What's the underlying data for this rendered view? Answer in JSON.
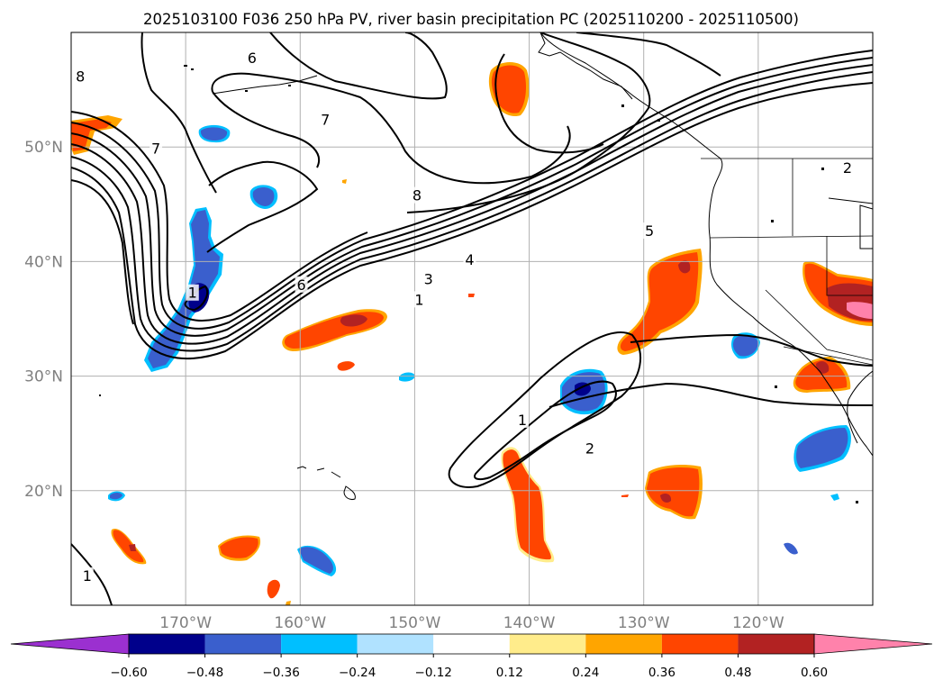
{
  "title": "2025103100 F036 250 hPa PV, river basin precipitation PC (2025110200 - 2025110500)",
  "map": {
    "lon_range": [
      -180,
      -110
    ],
    "lat_range": [
      10,
      60
    ],
    "lon_ticks": [
      {
        "value": -170,
        "label": "170°W"
      },
      {
        "value": -160,
        "label": "160°W"
      },
      {
        "value": -150,
        "label": "150°W"
      },
      {
        "value": -140,
        "label": "140°W"
      },
      {
        "value": -130,
        "label": "130°W"
      },
      {
        "value": -120,
        "label": "120°W"
      }
    ],
    "lat_ticks": [
      {
        "value": 20,
        "label": "20°N"
      },
      {
        "value": 30,
        "label": "30°N"
      },
      {
        "value": 40,
        "label": "40°N"
      },
      {
        "value": 50,
        "label": "50°N"
      }
    ],
    "grid": true,
    "tick_label_color": "#808080"
  },
  "contour_labels": [
    {
      "text": "8",
      "lon": -179.2,
      "lat": 56.2
    },
    {
      "text": "6",
      "lon": -164.2,
      "lat": 57.8
    },
    {
      "text": "7",
      "lon": -157.8,
      "lat": 52.4
    },
    {
      "text": "7",
      "lon": -172.6,
      "lat": 49.9
    },
    {
      "text": "8",
      "lon": -149.8,
      "lat": 45.8
    },
    {
      "text": "6",
      "lon": -159.9,
      "lat": 38.0
    },
    {
      "text": "3",
      "lon": -148.8,
      "lat": 38.5
    },
    {
      "text": "4",
      "lon": -145.2,
      "lat": 40.2
    },
    {
      "text": "1",
      "lon": -149.6,
      "lat": 36.7
    },
    {
      "text": "5",
      "lon": -129.5,
      "lat": 42.7
    },
    {
      "text": "2",
      "lon": -112.2,
      "lat": 48.2
    },
    {
      "text": "1",
      "lon": -140.6,
      "lat": 26.2
    },
    {
      "text": "2",
      "lon": -134.7,
      "lat": 23.7
    },
    {
      "text": "1",
      "lon": -178.6,
      "lat": 12.6
    },
    {
      "text": "1",
      "lon": -169.4,
      "lat": 37.3
    }
  ],
  "colorbar": {
    "levels": [
      "−0.60",
      "−0.48",
      "−0.36",
      "−0.24",
      "−0.12",
      "0.12",
      "0.24",
      "0.36",
      "0.48",
      "0.60"
    ],
    "colors": {
      "under": "#9b30d0",
      "bins": [
        "#00008b",
        "#3a5fcd",
        "#00bfff",
        "#b0e2ff",
        "#ffffff",
        "#ffec8b",
        "#ffa500",
        "#ff4500",
        "#b22222"
      ],
      "over": "#ff82ab"
    }
  }
}
